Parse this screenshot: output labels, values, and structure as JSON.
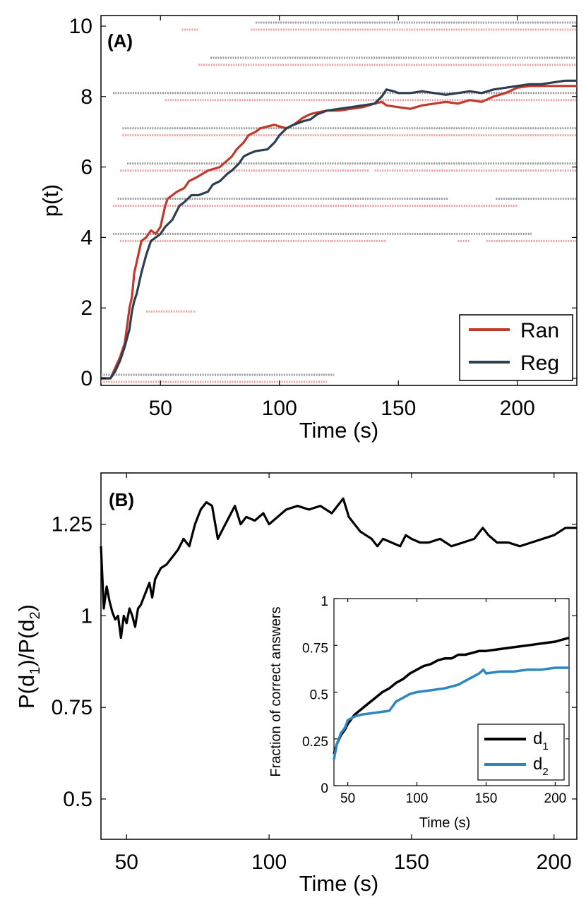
{
  "chart_data": [
    {
      "panel_label": "(A)",
      "type": "line",
      "xlabel": "Time (s)",
      "ylabel": "p(t)",
      "xlim": [
        25,
        225
      ],
      "ylim": [
        -0.2,
        10.3
      ],
      "xticks": [
        50,
        100,
        150,
        200
      ],
      "yticks": [
        0,
        2,
        4,
        6,
        8,
        10
      ],
      "legend_position": "bottom-right",
      "series": [
        {
          "name": "Ran",
          "color": "#c0392b",
          "x": [
            25,
            29,
            31,
            33,
            35,
            36,
            37,
            38,
            39,
            40,
            41,
            42,
            44,
            46,
            48,
            50,
            52,
            53,
            55,
            57,
            60,
            62,
            65,
            70,
            75,
            80,
            82,
            85,
            87,
            90,
            92,
            95,
            98,
            100,
            103,
            106,
            108,
            110,
            113,
            116,
            120,
            125,
            130,
            135,
            140,
            143,
            145,
            150,
            155,
            160,
            165,
            170,
            175,
            180,
            185,
            190,
            195,
            200,
            205,
            210,
            215,
            220,
            225
          ],
          "y": [
            0,
            0,
            0.3,
            0.6,
            1.0,
            1.5,
            2.0,
            2.3,
            3.0,
            3.3,
            3.6,
            3.9,
            4.0,
            4.2,
            4.1,
            4.3,
            4.9,
            5.1,
            5.2,
            5.3,
            5.4,
            5.6,
            5.7,
            5.9,
            6.0,
            6.3,
            6.5,
            6.7,
            6.9,
            7.0,
            7.1,
            7.15,
            7.2,
            7.15,
            7.1,
            7.2,
            7.3,
            7.4,
            7.5,
            7.55,
            7.6,
            7.6,
            7.65,
            7.7,
            7.8,
            7.85,
            7.75,
            7.7,
            7.65,
            7.75,
            7.8,
            7.85,
            7.8,
            7.9,
            7.85,
            8.0,
            8.1,
            8.25,
            8.3,
            8.3,
            8.3,
            8.3,
            8.3
          ]
        },
        {
          "name": "Reg",
          "color": "#2c3e50",
          "x": [
            25,
            29,
            31,
            33,
            35,
            37,
            38,
            39,
            40,
            42,
            44,
            46,
            48,
            50,
            52,
            55,
            58,
            60,
            63,
            66,
            68,
            70,
            72,
            75,
            78,
            80,
            83,
            85,
            88,
            90,
            95,
            98,
            100,
            103,
            106,
            110,
            113,
            116,
            120,
            125,
            130,
            135,
            140,
            143,
            145,
            148,
            150,
            155,
            160,
            165,
            170,
            175,
            180,
            185,
            190,
            195,
            200,
            205,
            210,
            215,
            220,
            225
          ],
          "y": [
            0,
            0,
            0.2,
            0.5,
            0.9,
            1.4,
            1.9,
            2.2,
            2.4,
            3.0,
            3.5,
            3.9,
            4.0,
            4.1,
            4.3,
            4.5,
            4.9,
            5.0,
            5.2,
            5.2,
            5.25,
            5.3,
            5.5,
            5.6,
            5.8,
            5.9,
            6.1,
            6.3,
            6.4,
            6.45,
            6.5,
            6.7,
            6.9,
            7.1,
            7.2,
            7.3,
            7.35,
            7.5,
            7.6,
            7.65,
            7.7,
            7.75,
            7.8,
            8.0,
            8.2,
            8.15,
            8.1,
            8.1,
            8.15,
            8.1,
            8.05,
            8.1,
            8.15,
            8.1,
            8.2,
            8.25,
            8.3,
            8.35,
            8.35,
            8.4,
            8.45,
            8.45
          ]
        }
      ],
      "background_dotted_segments": [
        {
          "color": "#999999",
          "y": 0.1,
          "x1": 25,
          "x2": 123
        },
        {
          "color": "#f4a0a0",
          "y": -0.1,
          "x1": 25,
          "x2": 120
        },
        {
          "color": "#f4a0a0",
          "y": 1.9,
          "x1": 44,
          "x2": 65
        },
        {
          "color": "#f4a0a0",
          "y": 3.9,
          "x1": 33,
          "x2": 122
        },
        {
          "color": "#f4a0a0",
          "y": 3.9,
          "x1": 122,
          "x2": 145
        },
        {
          "color": "#f4a0a0",
          "y": 3.9,
          "x1": 175,
          "x2": 180
        },
        {
          "color": "#f4a0a0",
          "y": 3.9,
          "x1": 187,
          "x2": 225
        },
        {
          "color": "#999999",
          "y": 4.1,
          "x1": 30,
          "x2": 206
        },
        {
          "color": "#f4a0a0",
          "y": 4.9,
          "x1": 30,
          "x2": 200
        },
        {
          "color": "#999999",
          "y": 5.1,
          "x1": 32,
          "x2": 171
        },
        {
          "color": "#999999",
          "y": 5.1,
          "x1": 191,
          "x2": 225
        },
        {
          "color": "#f4a0a0",
          "y": 5.9,
          "x1": 33,
          "x2": 138
        },
        {
          "color": "#f4a0a0",
          "y": 5.9,
          "x1": 140,
          "x2": 225
        },
        {
          "color": "#999999",
          "y": 6.1,
          "x1": 36,
          "x2": 225
        },
        {
          "color": "#f4a0a0",
          "y": 6.9,
          "x1": 34,
          "x2": 225
        },
        {
          "color": "#999999",
          "y": 7.1,
          "x1": 34,
          "x2": 225
        },
        {
          "color": "#f4a0a0",
          "y": 7.9,
          "x1": 52,
          "x2": 225
        },
        {
          "color": "#999999",
          "y": 8.1,
          "x1": 30,
          "x2": 225
        },
        {
          "color": "#f4a0a0",
          "y": 8.9,
          "x1": 66,
          "x2": 225
        },
        {
          "color": "#999999",
          "y": 9.1,
          "x1": 71,
          "x2": 225
        },
        {
          "color": "#f4a0a0",
          "y": 9.9,
          "x1": 59,
          "x2": 66
        },
        {
          "color": "#f4a0a0",
          "y": 9.9,
          "x1": 88,
          "x2": 225
        },
        {
          "color": "#999999",
          "y": 10.1,
          "x1": 90,
          "x2": 225
        }
      ]
    },
    {
      "panel_label": "(B)",
      "type": "line",
      "xlabel": "Time (s)",
      "ylabel": "P(d1)/P(d2)",
      "ylabel_parts": [
        "P(d",
        "1",
        ")/P(d",
        "2",
        ")"
      ],
      "xlim": [
        41,
        208
      ],
      "ylim": [
        0.39,
        1.39
      ],
      "xticks": [
        50,
        100,
        150,
        200
      ],
      "yticks": [
        0.5,
        0.75,
        1,
        1.25
      ],
      "ytick_labels": [
        "0.5",
        "0.75",
        "1",
        "1.25"
      ],
      "series": [
        {
          "name": "ratio",
          "color": "#000000",
          "x": [
            41,
            42,
            43,
            44,
            45,
            46,
            47,
            48,
            49,
            50,
            51,
            52,
            53,
            54,
            55,
            56,
            57,
            58,
            59,
            60,
            62,
            64,
            66,
            68,
            70,
            72,
            74,
            76,
            78,
            80,
            82,
            84,
            86,
            88,
            90,
            92,
            95,
            98,
            100,
            103,
            106,
            110,
            114,
            118,
            122,
            126,
            128,
            130,
            132,
            134,
            136,
            138,
            140,
            143,
            146,
            148,
            150,
            153,
            156,
            160,
            164,
            168,
            172,
            175,
            177,
            180,
            184,
            188,
            192,
            196,
            200,
            204,
            208
          ],
          "y": [
            1.19,
            1.02,
            1.08,
            1.04,
            1.01,
            0.99,
            1.0,
            0.94,
            1.0,
            0.98,
            1.02,
            1.0,
            0.97,
            1.02,
            1.03,
            1.05,
            1.07,
            1.09,
            1.05,
            1.1,
            1.13,
            1.14,
            1.16,
            1.18,
            1.21,
            1.19,
            1.25,
            1.29,
            1.31,
            1.3,
            1.21,
            1.24,
            1.27,
            1.3,
            1.25,
            1.27,
            1.26,
            1.28,
            1.25,
            1.27,
            1.29,
            1.3,
            1.29,
            1.3,
            1.28,
            1.32,
            1.27,
            1.25,
            1.23,
            1.22,
            1.21,
            1.19,
            1.21,
            1.2,
            1.19,
            1.22,
            1.21,
            1.2,
            1.2,
            1.21,
            1.19,
            1.2,
            1.21,
            1.24,
            1.22,
            1.2,
            1.2,
            1.19,
            1.2,
            1.21,
            1.22,
            1.24,
            1.24
          ]
        }
      ],
      "inset": {
        "type": "line",
        "xlabel": "Time (s)",
        "ylabel": "Fraction of correct answers",
        "xlim": [
          40,
          210
        ],
        "ylim": [
          0,
          1
        ],
        "xticks": [
          50,
          100,
          150,
          200
        ],
        "yticks": [
          0,
          0.25,
          0.5,
          0.75,
          1
        ],
        "ytick_labels": [
          "0",
          "0.25",
          "0.5",
          "0.75",
          "1"
        ],
        "legend_position": "bottom-right",
        "series": [
          {
            "name": "d1",
            "name_parts": [
              "d",
              "1"
            ],
            "color": "#000000",
            "x": [
              40,
              42,
              45,
              48,
              50,
              55,
              60,
              65,
              70,
              75,
              80,
              85,
              90,
              95,
              100,
              105,
              110,
              115,
              120,
              125,
              130,
              135,
              140,
              145,
              150,
              160,
              170,
              180,
              190,
              200,
              210
            ],
            "y": [
              0.17,
              0.22,
              0.27,
              0.3,
              0.33,
              0.38,
              0.41,
              0.44,
              0.47,
              0.5,
              0.52,
              0.55,
              0.57,
              0.6,
              0.62,
              0.64,
              0.65,
              0.67,
              0.68,
              0.68,
              0.7,
              0.7,
              0.71,
              0.72,
              0.72,
              0.73,
              0.74,
              0.75,
              0.76,
              0.77,
              0.79
            ]
          },
          {
            "name": "d2",
            "name_parts": [
              "d",
              "2"
            ],
            "color": "#2e86c1",
            "x": [
              40,
              42,
              45,
              48,
              50,
              55,
              60,
              70,
              80,
              85,
              90,
              95,
              100,
              110,
              120,
              130,
              135,
              140,
              145,
              148,
              150,
              160,
              170,
              180,
              190,
              200,
              210
            ],
            "y": [
              0.14,
              0.22,
              0.28,
              0.31,
              0.35,
              0.37,
              0.38,
              0.39,
              0.4,
              0.45,
              0.47,
              0.49,
              0.5,
              0.51,
              0.52,
              0.54,
              0.56,
              0.58,
              0.6,
              0.62,
              0.6,
              0.61,
              0.61,
              0.62,
              0.62,
              0.63,
              0.63
            ]
          }
        ]
      }
    }
  ]
}
